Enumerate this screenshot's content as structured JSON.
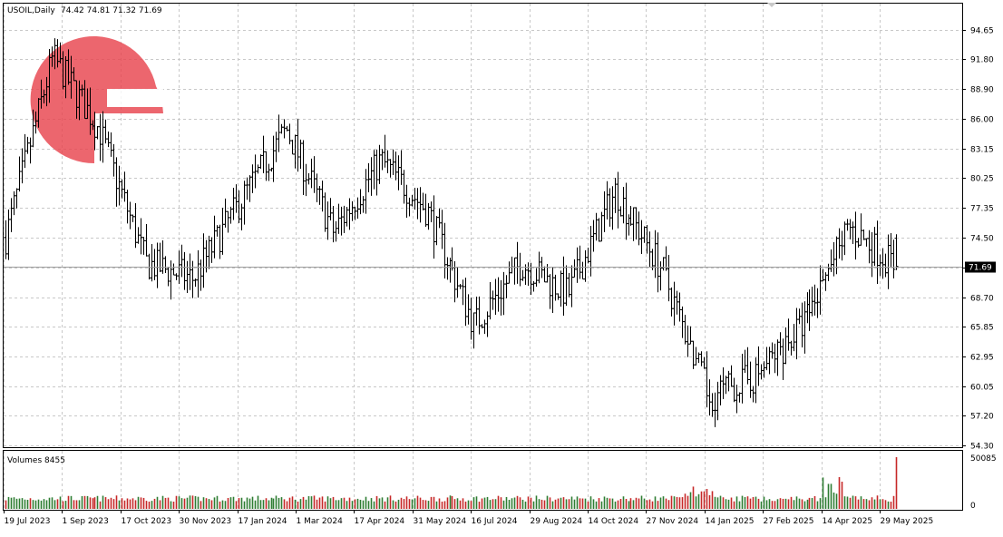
{
  "header": {
    "symbol_line": "USOIL,Daily",
    "ohlc_line": "74.42 74.81 71.32 71.69"
  },
  "volume_panel": {
    "label": "Volumes 8455",
    "ticks": [
      "50085",
      "0"
    ]
  },
  "price_axis": {
    "ticks": [
      "94.65",
      "91.80",
      "88.90",
      "86.00",
      "83.15",
      "80.25",
      "77.35",
      "74.50",
      "71.60",
      "68.70",
      "65.85",
      "62.95",
      "60.05",
      "57.20",
      "54.30"
    ],
    "current_price_label": "71.69"
  },
  "date_axis": {
    "ticks": [
      "19 Jul 2023",
      "1 Sep 2023",
      "17 Oct 2023",
      "30 Nov 2023",
      "17 Jan 2024",
      "1 Mar 2024",
      "17 Apr 2024",
      "31 May 2024",
      "16 Jul 2024",
      "29 Aug 2024",
      "14 Oct 2024",
      "27 Nov 2024",
      "14 Jan 2025",
      "27 Feb 2025",
      "14 Apr 2025",
      "29 May 2025"
    ]
  },
  "colors": {
    "background": "#ffffff",
    "grid": "#c8c8c8",
    "bars": "#000000",
    "volume_up": "#2e7d32",
    "volume_down": "#c62828",
    "logo": "#e8454f",
    "current_price_line": "#9e9e9e"
  },
  "logo": {
    "icon": "fg-logo-icon"
  },
  "chart_data": {
    "type": "ohlc",
    "symbol": "USOIL",
    "timeframe": "Daily",
    "ylim": [
      54.3,
      96.0
    ],
    "x": [
      "2023-07-19",
      "2023-09-01",
      "2023-10-17",
      "2023-11-30",
      "2024-01-17",
      "2024-03-01",
      "2024-04-17",
      "2024-05-31",
      "2024-07-16",
      "2024-08-29",
      "2024-10-14",
      "2024-11-27",
      "2025-01-14",
      "2025-02-27",
      "2025-04-14",
      "2025-05-29",
      "2025-06-18"
    ],
    "close_path": [
      74.5,
      92.0,
      85.0,
      72.0,
      70.5,
      78.0,
      85.0,
      75.0,
      82.0,
      77.0,
      66.0,
      72.0,
      69.0,
      79.0,
      71.5,
      59.0,
      61.0,
      66.0,
      75.5,
      71.69
    ],
    "last_bar": {
      "open": 74.42,
      "high": 74.81,
      "low": 71.32,
      "close": 71.69
    },
    "volume_max": 50085,
    "last_volume": 8455
  }
}
